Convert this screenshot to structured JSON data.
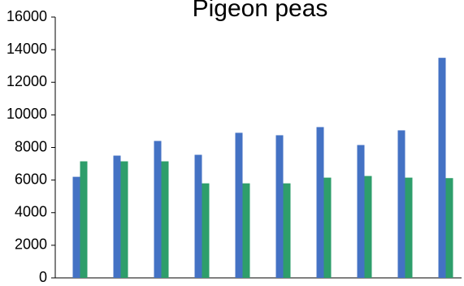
{
  "chart_data": {
    "type": "bar",
    "title": "Pigeon peas",
    "xlabel": "",
    "ylabel": "",
    "ylim": [
      0,
      16000
    ],
    "yticks": [
      "0",
      "2000",
      "4000",
      "6000",
      "8000",
      "10000",
      "12000",
      "14000",
      "16000"
    ],
    "categories": [
      "",
      "",
      "",
      "",
      "",
      "",
      "",
      "",
      "",
      ""
    ],
    "series": [
      {
        "color": "#4472C4",
        "values": [
          6200,
          7500,
          8400,
          7550,
          8900,
          8750,
          9250,
          8150,
          9050,
          13500
        ]
      },
      {
        "color": "#2E9E6B",
        "values": [
          7150,
          7150,
          7150,
          5800,
          5800,
          5800,
          6150,
          6250,
          6150,
          6120
        ]
      }
    ],
    "grid": false,
    "legend": "none"
  }
}
